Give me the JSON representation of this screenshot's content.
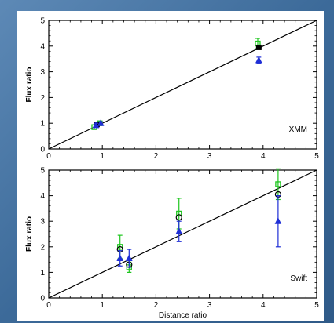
{
  "colors": {
    "slide_bg": "#3f6d9c",
    "panel_bg": "#ffffff",
    "green": "#1fc61f",
    "blue": "#1f2fd6",
    "black": "#000000"
  },
  "chart_data": [
    {
      "type": "scatter",
      "label": "XMM",
      "xlabel": "",
      "ylabel": "Flux ratio",
      "xlim": [
        0,
        5
      ],
      "ylim": [
        0,
        5
      ],
      "xticks": [
        0,
        1,
        2,
        3,
        4,
        5
      ],
      "yticks": [
        0,
        1,
        2,
        3,
        4,
        5
      ],
      "grid": false,
      "reference_line": {
        "slope": 1,
        "intercept": 0
      },
      "series": [
        {
          "marker": "square",
          "color": "green",
          "points": [
            {
              "x": 0.85,
              "y": 0.85,
              "err": 0.08
            },
            {
              "x": 0.95,
              "y": 1.0,
              "err": 0.08
            },
            {
              "x": 3.9,
              "y": 4.1,
              "err": 0.2
            }
          ]
        },
        {
          "marker": "square-filled",
          "color": "black",
          "points": [
            {
              "x": 0.9,
              "y": 0.95,
              "err": 0
            },
            {
              "x": 3.92,
              "y": 3.95,
              "err": 0
            }
          ]
        },
        {
          "marker": "triangle",
          "color": "blue",
          "points": [
            {
              "x": 0.88,
              "y": 0.92,
              "err": 0.08
            },
            {
              "x": 0.97,
              "y": 1.0,
              "err": 0.06
            },
            {
              "x": 3.92,
              "y": 3.45,
              "err": 0.12
            }
          ]
        }
      ]
    },
    {
      "type": "scatter",
      "label": "Swift",
      "xlabel": "Distance ratio",
      "ylabel": "Flux ratio",
      "xlim": [
        0,
        5
      ],
      "ylim": [
        0,
        5
      ],
      "xticks": [
        0,
        1,
        2,
        3,
        4,
        5
      ],
      "yticks": [
        0,
        1,
        2,
        3,
        4,
        5
      ],
      "grid": false,
      "reference_line": {
        "slope": 1,
        "intercept": 0
      },
      "series": [
        {
          "marker": "square",
          "color": "green",
          "points": [
            {
              "x": 1.33,
              "y": 2.0,
              "err": 0.45
            },
            {
              "x": 1.5,
              "y": 1.2,
              "err": 0.2
            },
            {
              "x": 2.43,
              "y": 3.3,
              "err": 0.6
            },
            {
              "x": 4.28,
              "y": 4.45,
              "err": 0.6
            }
          ]
        },
        {
          "marker": "circle",
          "color": "black",
          "points": [
            {
              "x": 1.33,
              "y": 1.9,
              "err": 0
            },
            {
              "x": 1.5,
              "y": 1.3,
              "err": 0
            },
            {
              "x": 2.43,
              "y": 3.15,
              "err": 0
            },
            {
              "x": 4.28,
              "y": 4.05,
              "err": 0
            }
          ]
        },
        {
          "marker": "triangle",
          "color": "blue",
          "points": [
            {
              "x": 1.33,
              "y": 1.55,
              "err": 0.3
            },
            {
              "x": 1.5,
              "y": 1.55,
              "err": 0.35
            },
            {
              "x": 2.43,
              "y": 2.6,
              "err": 0.4
            },
            {
              "x": 4.28,
              "y": 3.0,
              "err": 1.0
            }
          ]
        }
      ]
    }
  ]
}
